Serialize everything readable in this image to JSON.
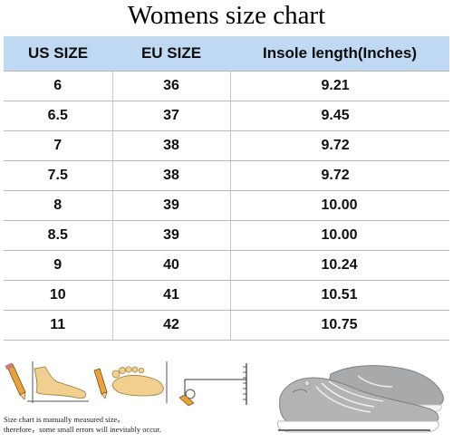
{
  "title": "Womens size chart",
  "headers": [
    "US SIZE",
    "EU SIZE",
    "Insole length(Inches)"
  ],
  "rows": [
    [
      "6",
      "36",
      "9.21"
    ],
    [
      "6.5",
      "37",
      "9.45"
    ],
    [
      "7",
      "38",
      "9.72"
    ],
    [
      "7.5",
      "38",
      "9.72"
    ],
    [
      "8",
      "39",
      "10.00"
    ],
    [
      "8.5",
      "39",
      "10.00"
    ],
    [
      "9",
      "40",
      "10.24"
    ],
    [
      "10",
      "41",
      "10.51"
    ],
    [
      "11",
      "42",
      "10.75"
    ]
  ],
  "note_line1": "Size chart is manually measured size。",
  "note_line2": "therefore，some small errors will inevitably occur.",
  "colors": {
    "header_bg": "#bfd9f3",
    "row_border": "#b9b9b9"
  },
  "icons": [
    "pencil-icon",
    "foot-side-icon",
    "foot-top-icon",
    "ruler-icon",
    "sneaker-image"
  ]
}
